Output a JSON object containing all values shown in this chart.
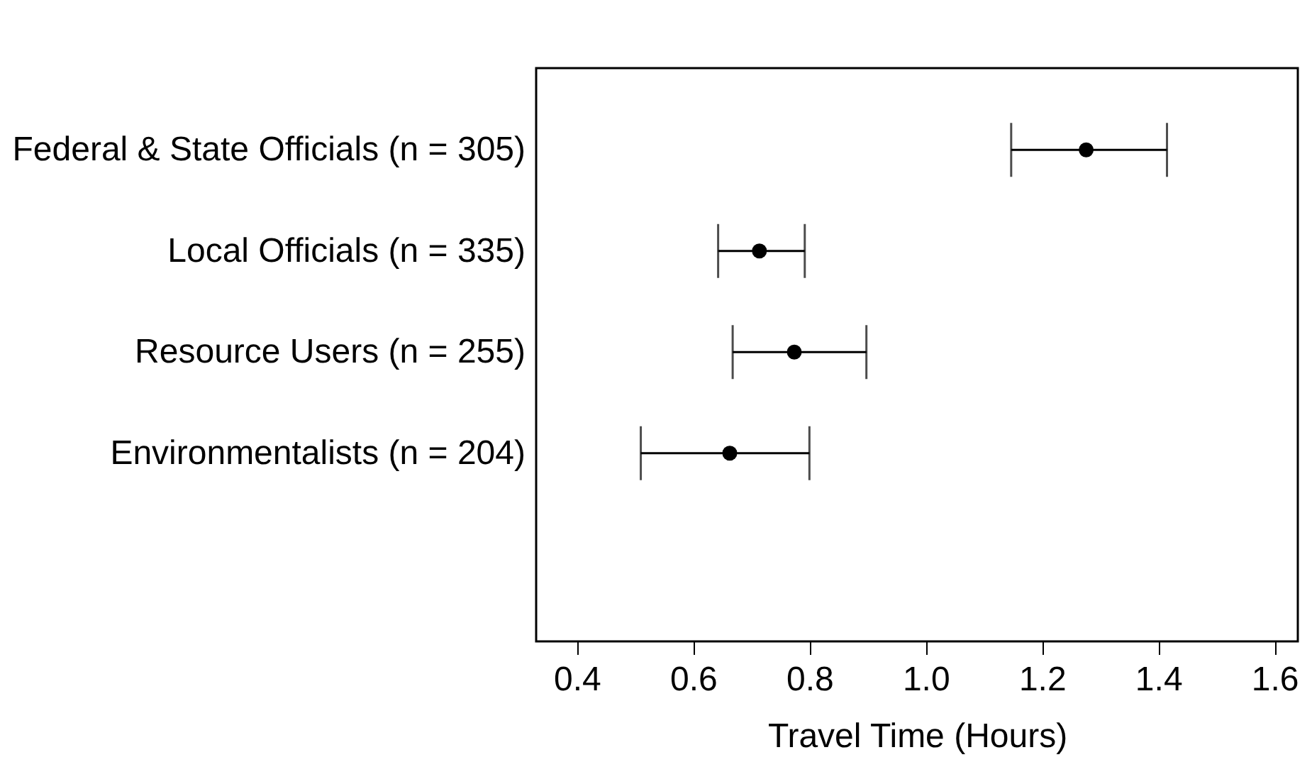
{
  "chart_data": {
    "type": "scatter",
    "xlabel": "Travel Time (Hours)",
    "categories": [
      "Federal & State Officials (n = 305)",
      "Local Officials (n = 335)",
      "Resource Users (n = 255)",
      "Environmentalists (n = 204)"
    ],
    "orientation": "horizontal",
    "series": [
      {
        "color": "#000000",
        "values": [
          1.276,
          0.714,
          0.774,
          0.663
        ],
        "errors": [
          [
            1.147,
            1.415
          ],
          [
            0.643,
            0.792
          ],
          [
            0.668,
            0.898
          ],
          [
            0.51,
            0.8
          ]
        ]
      }
    ],
    "xlim": [
      0.33,
      1.64
    ],
    "xticks": [
      {
        "value": 0.4,
        "label": "0.4"
      },
      {
        "value": 0.6,
        "label": "0.6"
      },
      {
        "value": 0.8,
        "label": "0.8"
      },
      {
        "value": 1.0,
        "label": "1.0"
      },
      {
        "value": 1.2,
        "label": "1.2"
      },
      {
        "value": 1.4,
        "label": "1.4"
      },
      {
        "value": 1.6,
        "label": "1.6"
      }
    ],
    "marker": "circle",
    "grid": false
  }
}
